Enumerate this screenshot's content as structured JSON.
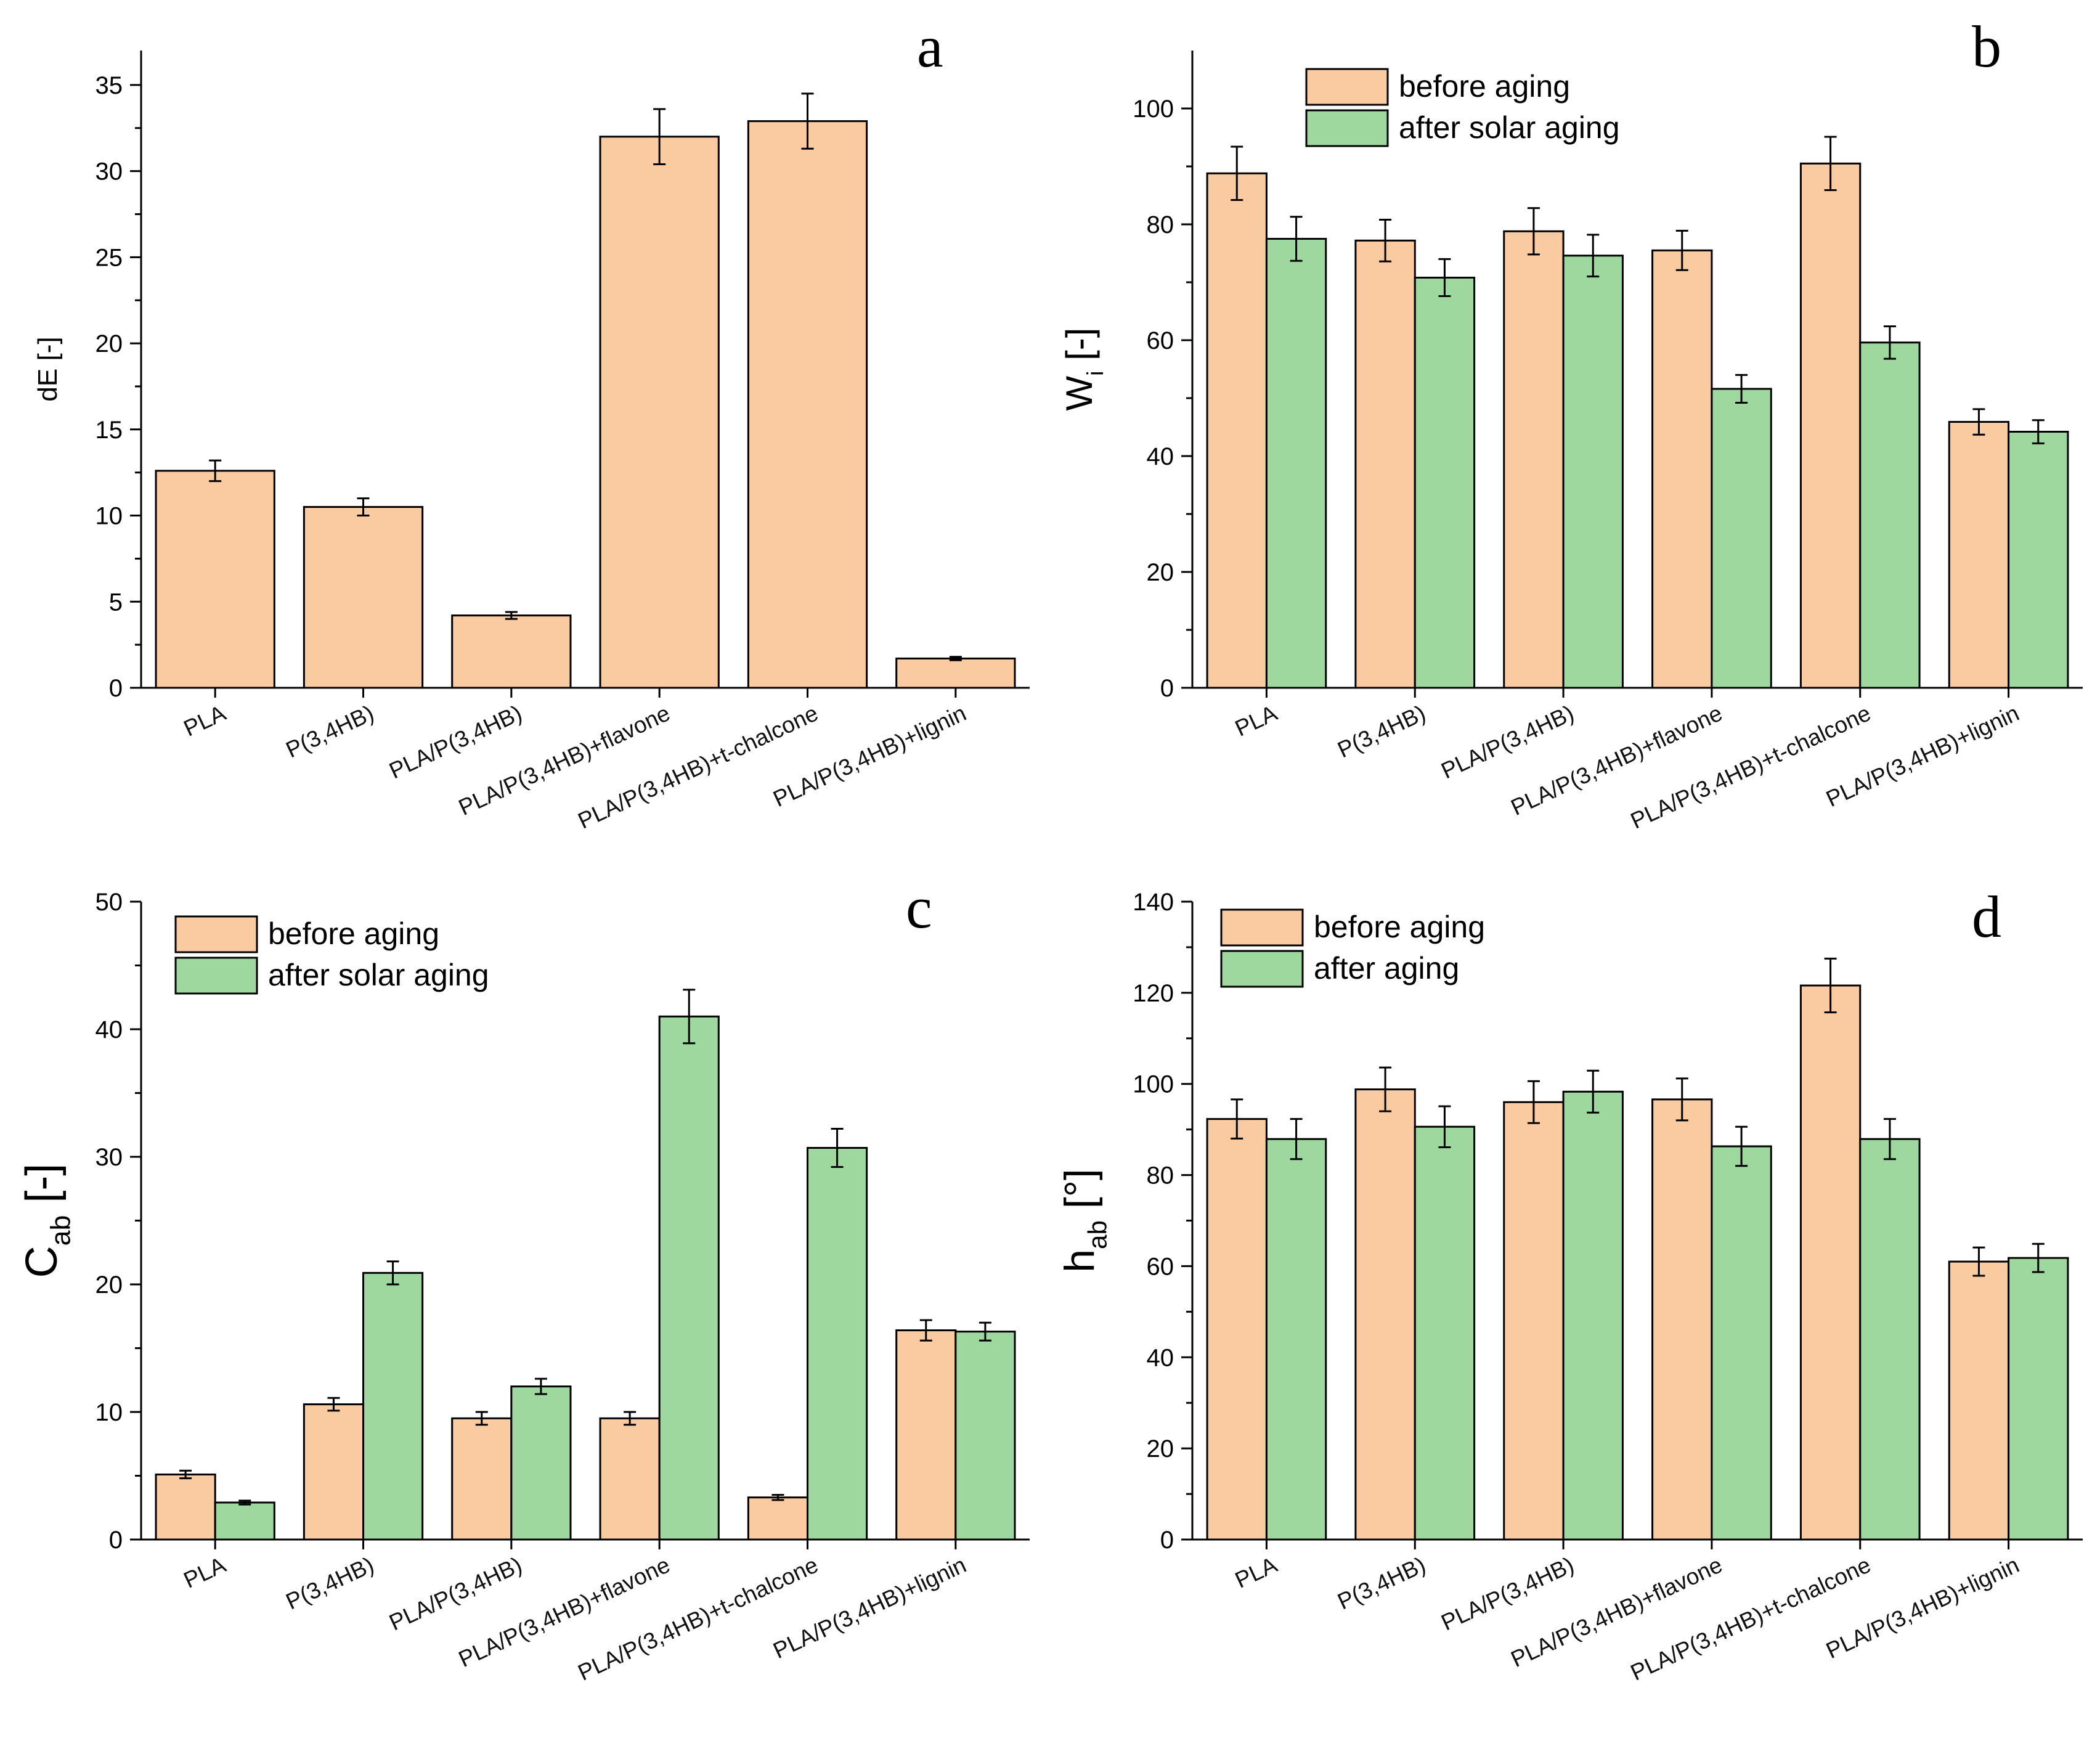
{
  "colors": {
    "before": "#FACBA0",
    "after": "#9FD89F",
    "axis": "#000000"
  },
  "chart_data": [
    {
      "type": "bar",
      "panel": "a",
      "ylabel": "dE [-]",
      "ylim": [
        0,
        37
      ],
      "yticks": [
        0,
        5,
        10,
        15,
        20,
        25,
        30,
        35
      ],
      "categories": [
        "PLA",
        "P(3,4HB)",
        "PLA/P(3,4HB)",
        "PLA/P(3,4HB)+flavone",
        "PLA/P(3,4HB)+t-chalcone",
        "PLA/P(3,4HB)+lignin"
      ],
      "legend": null,
      "series": [
        {
          "values": [
            12.6,
            10.5,
            4.2,
            32.0,
            32.9,
            1.7
          ],
          "errors": [
            0.6,
            0.5,
            0.2,
            1.6,
            1.6,
            0.1
          ],
          "color": "#FACBA0"
        }
      ]
    },
    {
      "type": "bar",
      "panel": "b",
      "ylabel": "W",
      "ylabel_sub": "i",
      "ylabel_suffix": " [-]",
      "ylim": [
        0,
        110
      ],
      "yticks": [
        0,
        20,
        40,
        60,
        80,
        100
      ],
      "categories": [
        "PLA",
        "P(3,4HB)",
        "PLA/P(3,4HB)",
        "PLA/P(3,4HB)+flavone",
        "PLA/P(3,4HB)+t-chalcone",
        "PLA/P(3,4HB)+lignin"
      ],
      "legend": "top-left",
      "series": [
        {
          "name": "before  aging",
          "values": [
            88.8,
            77.2,
            78.8,
            75.5,
            90.5,
            45.9
          ],
          "errors": [
            4.6,
            3.6,
            4.0,
            3.4,
            4.6,
            2.2
          ],
          "color": "#FACBA0"
        },
        {
          "name": "after solar aging",
          "values": [
            77.5,
            70.8,
            74.6,
            51.6,
            59.6,
            44.2
          ],
          "errors": [
            3.8,
            3.2,
            3.6,
            2.4,
            2.8,
            2.0
          ],
          "color": "#9FD89F"
        }
      ]
    },
    {
      "type": "bar",
      "panel": "c",
      "ylabel": "C",
      "ylabel_sub": "ab",
      "ylabel_suffix": " [-]",
      "ylim": [
        0,
        50
      ],
      "yticks": [
        0,
        10,
        20,
        30,
        40,
        50
      ],
      "categories": [
        "PLA",
        "P(3,4HB)",
        "PLA/P(3,4HB)",
        "PLA/P(3,4HB)+flavone",
        "PLA/P(3,4HB)+t-chalcone",
        "PLA/P(3,4HB)+lignin"
      ],
      "legend": "top-left",
      "series": [
        {
          "name": "before aging",
          "values": [
            5.1,
            10.6,
            9.5,
            9.5,
            3.3,
            16.4
          ],
          "errors": [
            0.3,
            0.5,
            0.5,
            0.5,
            0.2,
            0.8
          ],
          "color": "#FACBA0"
        },
        {
          "name": "after solar aging",
          "values": [
            2.9,
            20.9,
            12.0,
            41.0,
            30.7,
            16.3
          ],
          "errors": [
            0.15,
            0.9,
            0.6,
            2.1,
            1.5,
            0.7
          ],
          "color": "#9FD89F"
        }
      ]
    },
    {
      "type": "bar",
      "panel": "d",
      "ylabel": "h",
      "ylabel_sub": "ab",
      "ylabel_suffix": " [°]",
      "ylim": [
        0,
        140
      ],
      "yticks": [
        0,
        20,
        40,
        60,
        80,
        100,
        120,
        140
      ],
      "categories": [
        "PLA",
        "P(3,4HB)",
        "PLA/P(3,4HB)",
        "PLA/P(3,4HB)+flavone",
        "PLA/P(3,4HB)+t-chalcone",
        "PLA/P(3,4HB)+lignin"
      ],
      "legend": "top-left",
      "series": [
        {
          "name": "before aging",
          "values": [
            92.3,
            98.8,
            96.0,
            96.6,
            121.6,
            61.0
          ],
          "errors": [
            4.3,
            4.8,
            4.6,
            4.6,
            5.9,
            3.1
          ],
          "color": "#FACBA0"
        },
        {
          "name": "after aging",
          "values": [
            87.9,
            90.6,
            98.3,
            86.3,
            87.9,
            61.8
          ],
          "errors": [
            4.4,
            4.5,
            4.6,
            4.3,
            4.4,
            3.1
          ],
          "color": "#9FD89F"
        }
      ]
    }
  ]
}
